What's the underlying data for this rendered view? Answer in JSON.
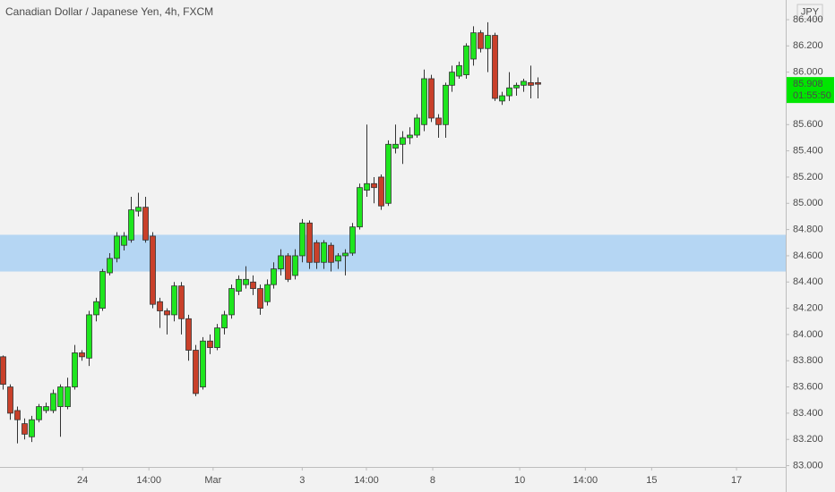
{
  "chart_data": {
    "type": "candlestick",
    "title": "Canadian Dollar / Japanese Yen, 4h, FXCM",
    "currency": "JPY",
    "last_price": 85.908,
    "countdown": "01:55:50",
    "up_color": "#1ee61e",
    "down_color": "#c9402a",
    "last_price_color": "#00e600",
    "zone": {
      "low": 84.48,
      "high": 84.76,
      "color": "#b5d6f3"
    },
    "open": [
      83.83,
      83.6,
      83.42,
      83.32,
      83.22,
      83.35,
      83.42,
      83.42,
      83.45,
      83.45,
      83.6,
      83.86,
      83.82,
      84.15,
      84.2,
      84.47,
      84.58,
      84.68,
      84.72,
      84.94,
      84.97,
      84.75,
      84.25,
      84.18,
      84.15,
      84.37,
      84.12,
      83.88,
      83.6,
      83.95,
      83.9,
      84.05,
      84.15,
      84.33,
      84.38,
      84.4,
      84.35,
      84.25,
      84.38,
      84.5,
      84.6,
      84.45,
      84.6,
      84.85,
      84.7,
      84.55,
      84.68,
      84.56,
      84.6,
      84.62,
      84.82,
      85.1,
      85.15,
      85.2,
      85.0,
      85.42,
      85.45,
      85.5,
      85.52,
      85.6,
      85.95,
      85.65,
      85.6,
      85.9,
      85.97,
      85.98,
      86.1,
      86.3,
      86.18,
      86.28,
      85.78,
      85.82,
      85.88,
      85.9,
      85.92,
      85.92
    ],
    "high": [
      83.84,
      83.62,
      83.45,
      83.36,
      83.38,
      83.47,
      83.48,
      83.58,
      83.62,
      83.67,
      83.92,
      83.88,
      84.18,
      84.28,
      84.5,
      84.62,
      84.78,
      84.78,
      85.05,
      85.08,
      85.05,
      84.78,
      84.28,
      84.2,
      84.4,
      84.4,
      84.15,
      83.92,
      83.98,
      84.0,
      84.08,
      84.18,
      84.38,
      84.45,
      84.52,
      84.45,
      84.38,
      84.42,
      84.55,
      84.65,
      84.62,
      84.65,
      84.88,
      84.87,
      84.72,
      84.72,
      84.7,
      84.62,
      84.65,
      84.85,
      85.15,
      85.6,
      85.2,
      85.22,
      85.48,
      85.6,
      85.55,
      85.58,
      85.68,
      86.02,
      85.98,
      85.68,
      85.92,
      86.05,
      86.08,
      86.22,
      86.35,
      86.32,
      86.38,
      86.3,
      85.85,
      86.0,
      85.92,
      85.95,
      86.05,
      85.96
    ],
    "low": [
      83.58,
      83.35,
      83.17,
      83.2,
      83.18,
      83.33,
      83.4,
      83.4,
      83.22,
      83.43,
      83.58,
      83.8,
      83.76,
      84.1,
      84.18,
      84.45,
      84.55,
      84.64,
      84.7,
      84.9,
      84.7,
      84.2,
      84.05,
      84.0,
      84.1,
      84.0,
      83.8,
      83.53,
      83.58,
      83.85,
      83.88,
      84.0,
      84.12,
      84.3,
      84.35,
      84.3,
      84.15,
      84.22,
      84.35,
      84.45,
      84.4,
      84.42,
      84.55,
      84.5,
      84.5,
      84.5,
      84.48,
      84.5,
      84.45,
      84.6,
      84.8,
      85.05,
      85.0,
      84.95,
      84.98,
      85.38,
      85.3,
      85.45,
      85.5,
      85.55,
      85.62,
      85.5,
      85.5,
      85.85,
      85.95,
      85.95,
      86.05,
      86.15,
      86.0,
      85.78,
      85.75,
      85.78,
      85.82,
      85.85,
      85.8,
      85.8
    ],
    "close": [
      83.62,
      83.4,
      83.35,
      83.24,
      83.35,
      83.45,
      83.45,
      83.55,
      83.6,
      83.6,
      83.86,
      83.83,
      84.15,
      84.25,
      84.48,
      84.58,
      84.75,
      84.75,
      84.95,
      84.97,
      84.72,
      84.23,
      84.18,
      84.15,
      84.37,
      84.12,
      83.88,
      83.55,
      83.95,
      83.9,
      84.05,
      84.15,
      84.35,
      84.42,
      84.42,
      84.35,
      84.2,
      84.38,
      84.5,
      84.6,
      84.42,
      84.6,
      84.85,
      84.55,
      84.55,
      84.7,
      84.55,
      84.6,
      84.62,
      84.82,
      85.12,
      85.15,
      85.12,
      84.98,
      85.45,
      85.45,
      85.5,
      85.52,
      85.65,
      85.95,
      85.65,
      85.6,
      85.9,
      86.0,
      86.05,
      86.2,
      86.3,
      86.18,
      86.28,
      85.8,
      85.82,
      85.88,
      85.9,
      85.93,
      85.9,
      85.908
    ],
    "xlim": [
      -0.38,
      109.8
    ],
    "xticks": [
      {
        "value": 11.2,
        "label": "24"
      },
      {
        "value": 20.5,
        "label": "14:00"
      },
      {
        "value": 29.5,
        "label": "Mar"
      },
      {
        "value": 42,
        "label": "3"
      },
      {
        "value": 51,
        "label": "14:00"
      },
      {
        "value": 60.3,
        "label": "8"
      },
      {
        "value": 72.5,
        "label": "10"
      },
      {
        "value": 81.7,
        "label": "14:00"
      },
      {
        "value": 91,
        "label": "15"
      },
      {
        "value": 102.9,
        "label": "17"
      }
    ],
    "ylim": [
      82.99,
      86.55
    ],
    "yticks": [
      {
        "value": 83.0,
        "label": "83.000"
      },
      {
        "value": 83.2,
        "label": "83.200"
      },
      {
        "value": 83.4,
        "label": "83.400"
      },
      {
        "value": 83.6,
        "label": "83.600"
      },
      {
        "value": 83.8,
        "label": "83.800"
      },
      {
        "value": 84.0,
        "label": "84.000"
      },
      {
        "value": 84.2,
        "label": "84.200"
      },
      {
        "value": 84.4,
        "label": "84.400"
      },
      {
        "value": 84.6,
        "label": "84.600"
      },
      {
        "value": 84.8,
        "label": "84.800"
      },
      {
        "value": 85.0,
        "label": "85.000"
      },
      {
        "value": 85.2,
        "label": "85.200"
      },
      {
        "value": 85.4,
        "label": "85.400"
      },
      {
        "value": 85.6,
        "label": "85.600"
      },
      {
        "value": 85.8,
        "label": "85.800"
      },
      {
        "value": 86.0,
        "label": "86.000"
      },
      {
        "value": 86.2,
        "label": "86.200"
      },
      {
        "value": 86.4,
        "label": "86.400"
      }
    ]
  }
}
